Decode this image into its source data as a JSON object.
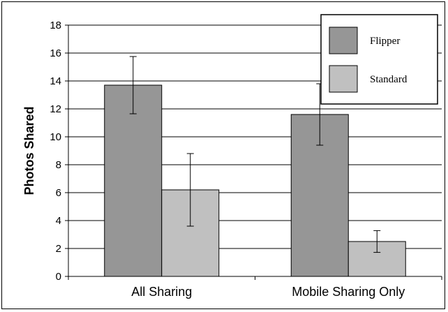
{
  "chart_data": {
    "type": "bar",
    "title": "",
    "xlabel": "",
    "ylabel": "Photos Shared",
    "ylim": [
      0,
      18
    ],
    "yticks": [
      0,
      2,
      4,
      6,
      8,
      10,
      12,
      14,
      16,
      18
    ],
    "grid": true,
    "legend_position": "top-right",
    "categories": [
      "All Sharing",
      "Mobile Sharing Only"
    ],
    "series": [
      {
        "name": "Flipper",
        "color": "#969696",
        "values": [
          13.7,
          11.6
        ],
        "error": [
          2.05,
          2.2
        ]
      },
      {
        "name": "Standard",
        "color": "#c0c0c0",
        "values": [
          6.2,
          2.5
        ],
        "error": [
          2.6,
          0.78
        ]
      }
    ]
  }
}
